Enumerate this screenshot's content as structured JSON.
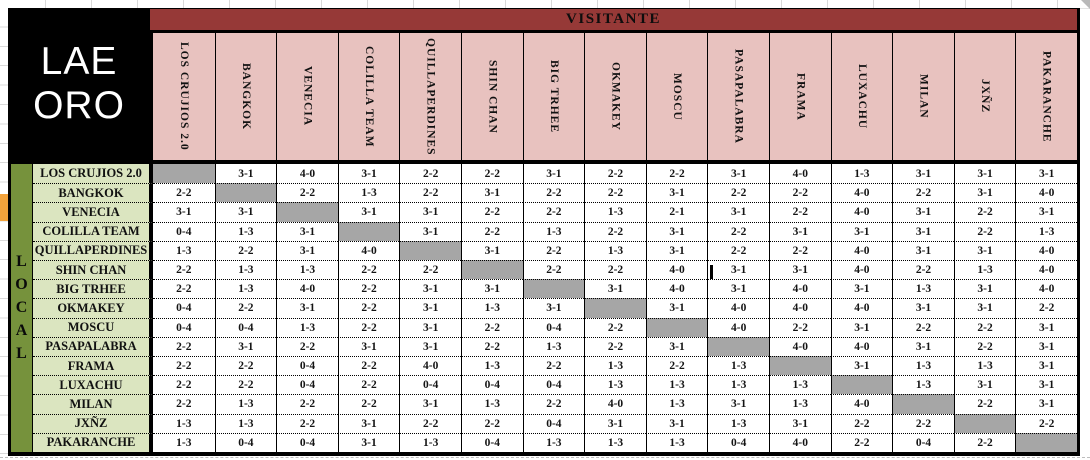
{
  "window": {
    "title_line1": "LAE",
    "title_line2": "ORO"
  },
  "header": {
    "visitante_label": "VISITANTE",
    "local_letters": [
      "L",
      "O",
      "C",
      "A",
      "L"
    ]
  },
  "teams": [
    "LOS CRUJIOS 2.0",
    "BANGKOK",
    "VENECIA",
    "COLILLA TEAM",
    "QUILLAPERDINES",
    "SHIN CHAN",
    "BIG TRHEE",
    "OKMAKEY",
    "MOSCU",
    "PASAPALABRA",
    "FRAMA",
    "LUXACHU",
    "MILAN",
    "JXÑZ",
    "PAKARANCHE"
  ],
  "results": [
    [
      null,
      "3-1",
      "4-0",
      "3-1",
      "2-2",
      "2-2",
      "3-1",
      "2-2",
      "2-2",
      "3-1",
      "4-0",
      "1-3",
      "3-1",
      "3-1",
      "3-1"
    ],
    [
      "2-2",
      null,
      "2-2",
      "1-3",
      "2-2",
      "3-1",
      "2-2",
      "2-2",
      "3-1",
      "2-2",
      "2-2",
      "4-0",
      "2-2",
      "3-1",
      "4-0"
    ],
    [
      "3-1",
      "3-1",
      null,
      "3-1",
      "3-1",
      "2-2",
      "2-2",
      "1-3",
      "2-1",
      "3-1",
      "2-2",
      "4-0",
      "3-1",
      "2-2",
      "3-1"
    ],
    [
      "0-4",
      "1-3",
      "3-1",
      null,
      "3-1",
      "2-2",
      "1-3",
      "2-2",
      "3-1",
      "2-2",
      "3-1",
      "3-1",
      "3-1",
      "2-2",
      "1-3"
    ],
    [
      "1-3",
      "2-2",
      "3-1",
      "4-0",
      null,
      "3-1",
      "2-2",
      "1-3",
      "3-1",
      "2-2",
      "2-2",
      "4-0",
      "3-1",
      "3-1",
      "4-0"
    ],
    [
      "2-2",
      "1-3",
      "1-3",
      "2-2",
      "2-2",
      null,
      "2-2",
      "2-2",
      "4-0",
      "3-1",
      "3-1",
      "4-0",
      "2-2",
      "1-3",
      "4-0"
    ],
    [
      "2-2",
      "1-3",
      "4-0",
      "2-2",
      "3-1",
      "3-1",
      null,
      "3-1",
      "4-0",
      "3-1",
      "4-0",
      "3-1",
      "1-3",
      "3-1",
      "4-0"
    ],
    [
      "0-4",
      "2-2",
      "3-1",
      "2-2",
      "3-1",
      "1-3",
      "3-1",
      null,
      "3-1",
      "4-0",
      "4-0",
      "4-0",
      "3-1",
      "3-1",
      "2-2"
    ],
    [
      "0-4",
      "0-4",
      "1-3",
      "2-2",
      "3-1",
      "2-2",
      "0-4",
      "2-2",
      null,
      "4-0",
      "2-2",
      "3-1",
      "2-2",
      "2-2",
      "3-1"
    ],
    [
      "2-2",
      "3-1",
      "2-2",
      "3-1",
      "3-1",
      "2-2",
      "1-3",
      "2-2",
      "3-1",
      null,
      "4-0",
      "4-0",
      "3-1",
      "2-2",
      "3-1"
    ],
    [
      "2-2",
      "2-2",
      "0-4",
      "2-2",
      "4-0",
      "1-3",
      "2-2",
      "1-3",
      "2-2",
      "1-3",
      null,
      "3-1",
      "1-3",
      "1-3",
      "3-1"
    ],
    [
      "2-2",
      "2-2",
      "0-4",
      "2-2",
      "0-4",
      "0-4",
      "0-4",
      "1-3",
      "1-3",
      "1-3",
      "1-3",
      null,
      "1-3",
      "3-1",
      "3-1"
    ],
    [
      "2-2",
      "1-3",
      "2-2",
      "2-2",
      "3-1",
      "1-3",
      "2-2",
      "4-0",
      "1-3",
      "3-1",
      "1-3",
      "4-0",
      null,
      "2-2",
      "3-1"
    ],
    [
      "1-3",
      "1-3",
      "2-2",
      "3-1",
      "2-2",
      "2-2",
      "0-4",
      "3-1",
      "3-1",
      "1-3",
      "3-1",
      "2-2",
      "2-2",
      null,
      "2-2"
    ],
    [
      "1-3",
      "0-4",
      "0-4",
      "3-1",
      "1-3",
      "0-4",
      "1-3",
      "1-3",
      "1-3",
      "0-4",
      "4-0",
      "2-2",
      "0-4",
      "2-2",
      null
    ]
  ],
  "colors": {
    "header_bar": "#963937",
    "header_cell": "#E8C2BF",
    "local_strip": "#76923C",
    "row_label": "#DBE5C0",
    "diagonal": "#A6A6A6",
    "marker": "#F2A33C"
  }
}
